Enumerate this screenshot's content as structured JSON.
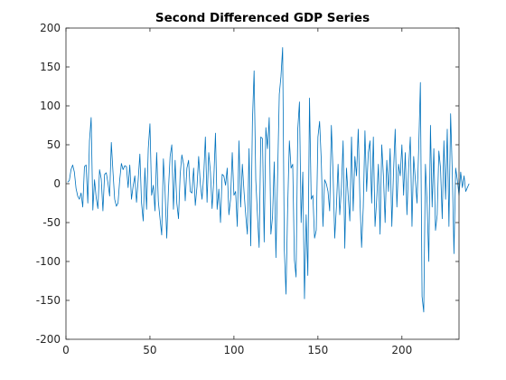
{
  "chart_data": {
    "type": "line",
    "title": "Second Differenced GDP Series",
    "xlabel": "",
    "ylabel": "",
    "xlim": [
      0,
      234
    ],
    "ylim": [
      -200,
      200
    ],
    "xticks": [
      0,
      50,
      100,
      150,
      200
    ],
    "yticks": [
      -200,
      -150,
      -100,
      -50,
      0,
      50,
      100,
      150,
      200
    ],
    "grid": false,
    "line_color": "#0072BD",
    "series": [
      {
        "name": "",
        "x_start": 1,
        "values": [
          2,
          4,
          18,
          24,
          15,
          -6,
          -16,
          -20,
          -12,
          -30,
          22,
          24,
          -25,
          55,
          85,
          -34,
          5,
          -18,
          -32,
          18,
          6,
          -35,
          12,
          14,
          1,
          -16,
          53,
          15,
          -20,
          -29,
          -25,
          5,
          26,
          18,
          23,
          22,
          -5,
          24,
          -20,
          -3,
          10,
          -24,
          5,
          38,
          -25,
          -48,
          20,
          -33,
          45,
          77,
          -15,
          -2,
          -35,
          40,
          -23,
          -45,
          -66,
          32,
          -10,
          -70,
          -8,
          35,
          50,
          -33,
          30,
          -25,
          -45,
          12,
          37,
          25,
          -22,
          20,
          30,
          -10,
          -12,
          20,
          -28,
          -4,
          35,
          0,
          -20,
          10,
          60,
          -24,
          40,
          15,
          -32,
          5,
          65,
          -33,
          -7,
          -50,
          12,
          10,
          -2,
          20,
          -40,
          -20,
          40,
          -15,
          -10,
          -55,
          55,
          -30,
          25,
          -10,
          -40,
          -65,
          45,
          -80,
          80,
          145,
          5,
          -40,
          -82,
          60,
          58,
          -75,
          72,
          45,
          85,
          -65,
          -42,
          28,
          -95,
          10,
          115,
          138,
          175,
          -85,
          -142,
          -30,
          55,
          20,
          25,
          -98,
          -120,
          70,
          105,
          -50,
          15,
          -148,
          -40,
          -118,
          110,
          -20,
          -15,
          -70,
          -60,
          60,
          80,
          30,
          -55,
          5,
          0,
          -10,
          -35,
          75,
          15,
          -70,
          -30,
          25,
          -40,
          -5,
          55,
          -83,
          20,
          -15,
          -48,
          60,
          -35,
          35,
          10,
          70,
          -20,
          -82,
          -30,
          68,
          -10,
          40,
          55,
          -25,
          60,
          -55,
          -20,
          25,
          -65,
          50,
          10,
          -50,
          30,
          -10,
          45,
          -55,
          15,
          70,
          -30,
          25,
          10,
          50,
          -15,
          40,
          -40,
          20,
          60,
          -55,
          35,
          5,
          -25,
          45,
          130,
          -145,
          -165,
          25,
          -25,
          -100,
          75,
          -30,
          45,
          -60,
          -40,
          42,
          20,
          -45,
          55,
          -20,
          70,
          -55,
          90,
          15,
          -90,
          20,
          5,
          -15,
          15,
          -5,
          10,
          -10,
          -5,
          0
        ]
      }
    ]
  }
}
